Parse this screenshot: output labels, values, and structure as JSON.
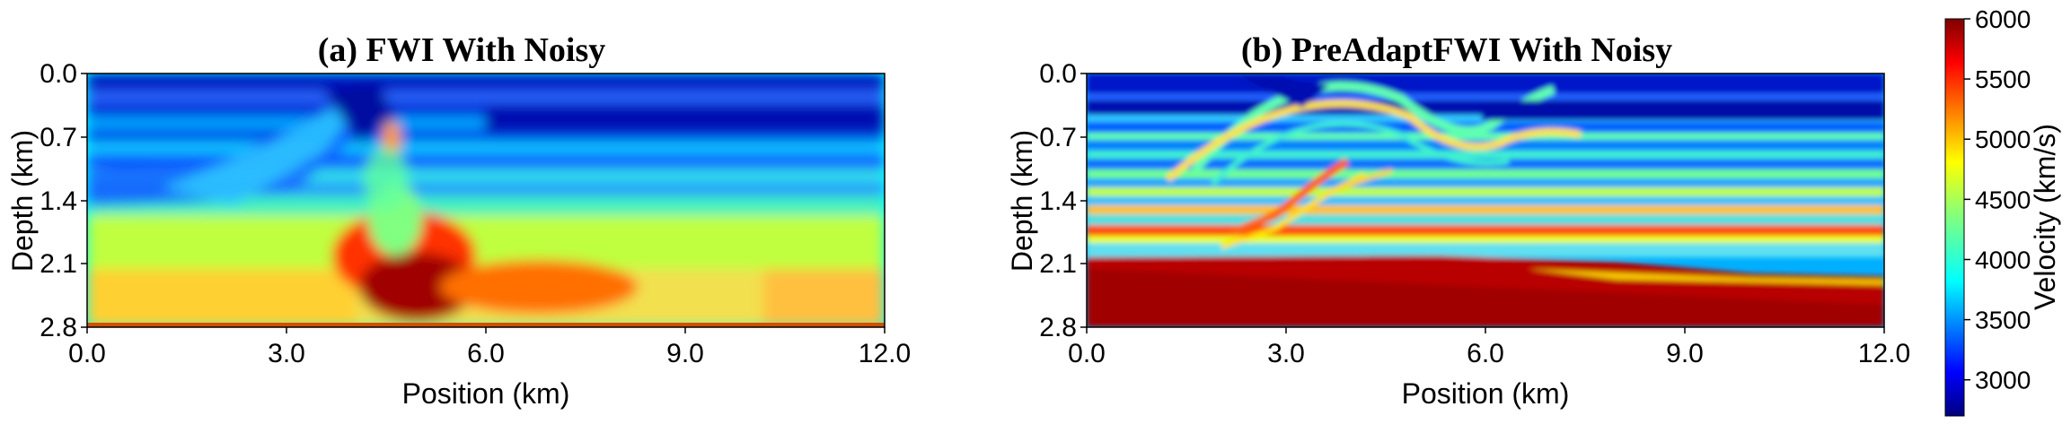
{
  "chart_data": [
    {
      "type": "heatmap",
      "title": "(a) FWI With Noisy",
      "xlabel": "Position (km)",
      "ylabel": "Depth (km)",
      "xlim": [
        0.0,
        12.0
      ],
      "ylim": [
        0.0,
        2.8
      ],
      "x_ticks": [
        "0.0",
        "3.0",
        "6.0",
        "9.0",
        "12.0"
      ],
      "y_ticks": [
        "0.0",
        "0.7",
        "1.4",
        "2.1",
        "2.8"
      ],
      "field": "Velocity (km/s)",
      "value_range": [
        2700,
        6000
      ]
    },
    {
      "type": "heatmap",
      "title": "(b) PreAdaptFWI With Noisy",
      "xlabel": "Position (km)",
      "ylabel": "Depth (km)",
      "xlim": [
        0.0,
        12.0
      ],
      "ylim": [
        0.0,
        2.8
      ],
      "x_ticks": [
        "0.0",
        "3.0",
        "6.0",
        "9.0",
        "12.0"
      ],
      "y_ticks": [
        "0.0",
        "0.7",
        "1.4",
        "2.1",
        "2.8"
      ],
      "field": "Velocity (km/s)",
      "value_range": [
        2700,
        6000
      ]
    }
  ],
  "colorbar": {
    "label": "Velocity (km/s)",
    "ticks": [
      "3000",
      "3500",
      "4000",
      "4500",
      "5000",
      "5500",
      "6000"
    ],
    "min": 2700,
    "max": 6000,
    "colormap": "jet",
    "colors": [
      "#00007f",
      "#0000ff",
      "#0080ff",
      "#00ffff",
      "#80ff80",
      "#ffff00",
      "#ff8000",
      "#ff0000",
      "#7f0000"
    ]
  }
}
